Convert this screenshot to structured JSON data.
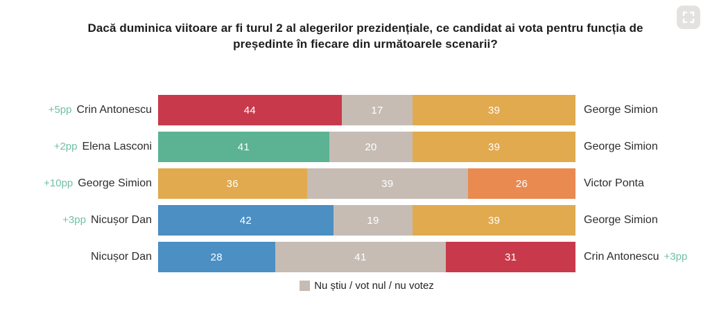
{
  "title": "Dacă duminica viitoare ar fi turul 2 al alegerilor prezidențiale, ce candidat ai vota pentru funcția de președinte în fiecare din următoarele scenarii?",
  "fullscreen_button": {
    "icon": "fullscreen-expand-icon"
  },
  "legend": {
    "label": "Nu știu / vot nul / nu votez",
    "swatch_color": "#c6bcb4"
  },
  "palette": {
    "red": "#c83a4b",
    "teal": "#5bb393",
    "gold": "#e1aa4f",
    "blue": "#4b8fc3",
    "orange": "#e98a51",
    "gray": "#c6bcb4",
    "lead_text": "#72bfa2"
  },
  "chart_data": {
    "type": "bar",
    "orientation": "horizontal-stacked",
    "xlim": [
      0,
      100
    ],
    "grid": false,
    "legend_position": "bottom",
    "note": "Each row is a head-to-head run-off scenario; middle gray segment = undecided/null/abstain",
    "rows": [
      {
        "lead": "+5pp",
        "left_label": "Crin Antonescu",
        "right_label": "George Simion",
        "trail": "",
        "segments": [
          {
            "value": 44,
            "color": "red"
          },
          {
            "value": 17,
            "color": "gray"
          },
          {
            "value": 39,
            "color": "gold"
          }
        ]
      },
      {
        "lead": "+2pp",
        "left_label": "Elena Lasconi",
        "right_label": "George Simion",
        "trail": "",
        "segments": [
          {
            "value": 41,
            "color": "teal"
          },
          {
            "value": 20,
            "color": "gray"
          },
          {
            "value": 39,
            "color": "gold"
          }
        ]
      },
      {
        "lead": "+10pp",
        "left_label": "George Simion",
        "right_label": "Victor Ponta",
        "trail": "",
        "segments": [
          {
            "value": 36,
            "color": "gold"
          },
          {
            "value": 39,
            "color": "gray"
          },
          {
            "value": 26,
            "color": "orange"
          }
        ]
      },
      {
        "lead": "+3pp",
        "left_label": "Nicușor Dan",
        "right_label": "George Simion",
        "trail": "",
        "segments": [
          {
            "value": 42,
            "color": "blue"
          },
          {
            "value": 19,
            "color": "gray"
          },
          {
            "value": 39,
            "color": "gold"
          }
        ]
      },
      {
        "lead": "",
        "left_label": "Nicușor Dan",
        "right_label": "Crin Antonescu",
        "trail": "+3pp",
        "segments": [
          {
            "value": 28,
            "color": "blue"
          },
          {
            "value": 41,
            "color": "gray"
          },
          {
            "value": 31,
            "color": "red"
          }
        ]
      }
    ]
  }
}
